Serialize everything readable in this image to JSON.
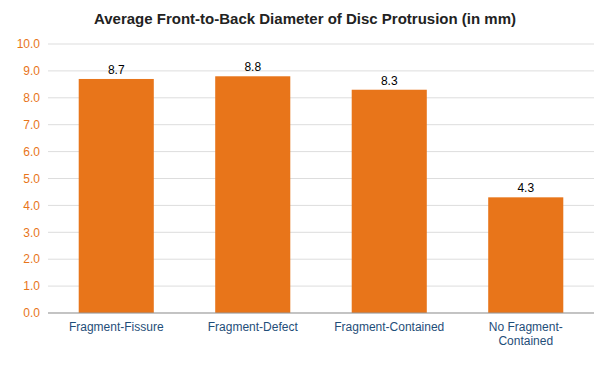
{
  "chart_data": {
    "type": "bar",
    "title": "Average Front-to-Back Diameter of Disc Protrusion (in mm)",
    "categories": [
      "Fragment-Fissure",
      "Fragment-Defect",
      "Fragment-Contained",
      "No Fragment-\nContained"
    ],
    "values": [
      8.7,
      8.8,
      8.3,
      4.3
    ],
    "color": "#E8751A",
    "ylim": [
      0.0,
      10.0
    ],
    "yticks": [
      {
        "value": 0.0,
        "label": "0.0"
      },
      {
        "value": 1.0,
        "label": "1.0"
      },
      {
        "value": 2.0,
        "label": "2.0"
      },
      {
        "value": 3.0,
        "label": "3.0"
      },
      {
        "value": 4.0,
        "label": "4.0"
      },
      {
        "value": 5.0,
        "label": "5.0"
      },
      {
        "value": 6.0,
        "label": "6.0"
      },
      {
        "value": 7.0,
        "label": "7.0"
      },
      {
        "value": 8.0,
        "label": "8.0"
      },
      {
        "value": 9.0,
        "label": "9.0"
      },
      {
        "value": 10.0,
        "label": "10.0"
      }
    ],
    "grid": true,
    "data_labels": true
  }
}
